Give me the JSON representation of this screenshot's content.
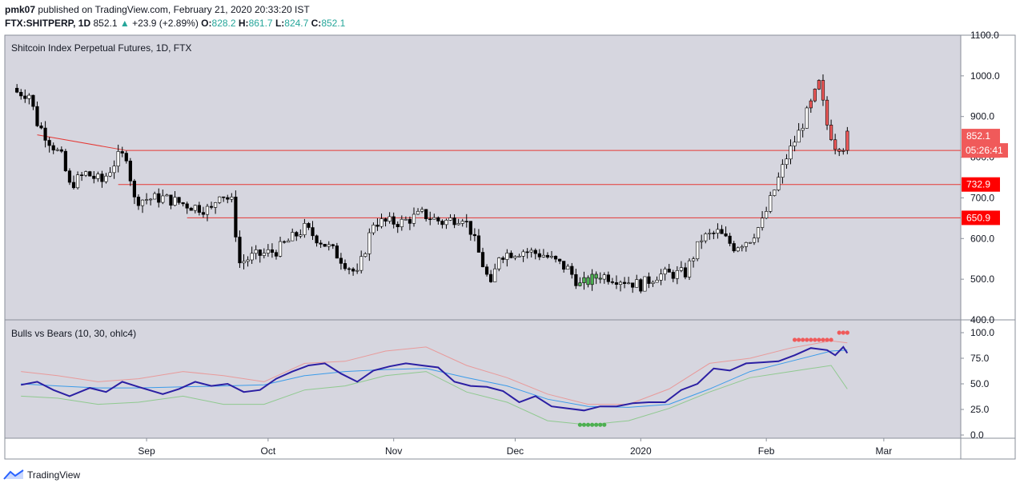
{
  "header": {
    "user": "pmk07",
    "published_text": "published on TradingView.com, February 21, 2020 20:33:20 IST",
    "symbol": "FTX:SHITPERP, 1D",
    "last": "852.1",
    "change_arrow": "▲",
    "change": "+23.9 (+2.89%)",
    "o_label": "O:",
    "o": "828.2",
    "h_label": "H:",
    "h": "861.7",
    "l_label": "L:",
    "l": "824.7",
    "c_label": "C:",
    "c": "852.1"
  },
  "footer": {
    "brand": "TradingView",
    "logo_icon": "tradingview-logo-icon"
  },
  "colors": {
    "pane_bg": "#d6d6df",
    "up": "#ffffff",
    "down": "#000000",
    "signal_up": "#4caf50",
    "signal_down": "#f05a5a",
    "hline": "#e53935",
    "bull": "#2b1fa3",
    "bear": "#3a9bea",
    "upper_band": "#e89a9a",
    "lower_band": "#8fc98f"
  },
  "chart_data": [
    {
      "type": "candlestick",
      "title": "Shitcoin Index Perpetual Futures, 1D, FTX",
      "ylim": [
        400,
        1100
      ],
      "y_ticks": [
        "400.0",
        "500.0",
        "600.0",
        "700.0",
        "800.0",
        "900.0",
        "1000.0",
        "1100.0"
      ],
      "x_ticks": [
        "Sep",
        "Oct",
        "Nov",
        "Dec",
        "2020",
        "Feb",
        "Mar"
      ],
      "horizontal_levels": [
        {
          "label": "816.5",
          "value": 816.5
        },
        {
          "label": "732.9",
          "value": 732.9
        },
        {
          "label": "650.9",
          "value": 650.9
        }
      ],
      "last_price_label": "852.1",
      "countdown_label": "05:26:41",
      "trendline": {
        "from": [
          "2019-08-05",
          855
        ],
        "to": [
          "2019-08-27",
          816.5
        ]
      },
      "closes": [
        {
          "date": "2019-07-31",
          "close": 960
        },
        {
          "date": "2019-08-03",
          "close": 955
        },
        {
          "date": "2019-08-05",
          "close": 885
        },
        {
          "date": "2019-08-08",
          "close": 840
        },
        {
          "date": "2019-08-11",
          "close": 800
        },
        {
          "date": "2019-08-13",
          "close": 730
        },
        {
          "date": "2019-08-17",
          "close": 760
        },
        {
          "date": "2019-08-21",
          "close": 740
        },
        {
          "date": "2019-08-25",
          "close": 800
        },
        {
          "date": "2019-08-27",
          "close": 805
        },
        {
          "date": "2019-08-29",
          "close": 695
        },
        {
          "date": "2019-09-05",
          "close": 700
        },
        {
          "date": "2019-09-12",
          "close": 680
        },
        {
          "date": "2019-09-17",
          "close": 670
        },
        {
          "date": "2019-09-19",
          "close": 715
        },
        {
          "date": "2019-09-22",
          "close": 690
        },
        {
          "date": "2019-09-24",
          "close": 540
        },
        {
          "date": "2019-09-27",
          "close": 555
        },
        {
          "date": "2019-10-03",
          "close": 570
        },
        {
          "date": "2019-10-10",
          "close": 625
        },
        {
          "date": "2019-10-17",
          "close": 570
        },
        {
          "date": "2019-10-23",
          "close": 510
        },
        {
          "date": "2019-10-27",
          "close": 640
        },
        {
          "date": "2019-11-03",
          "close": 640
        },
        {
          "date": "2019-11-08",
          "close": 660
        },
        {
          "date": "2019-11-13",
          "close": 640
        },
        {
          "date": "2019-11-18",
          "close": 655
        },
        {
          "date": "2019-11-20",
          "close": 620
        },
        {
          "date": "2019-11-25",
          "close": 480
        },
        {
          "date": "2019-11-27",
          "close": 560
        },
        {
          "date": "2019-12-03",
          "close": 570
        },
        {
          "date": "2019-12-08",
          "close": 560
        },
        {
          "date": "2019-12-14",
          "close": 525
        },
        {
          "date": "2019-12-17",
          "close": 485
        },
        {
          "date": "2019-12-22",
          "close": 510
        },
        {
          "date": "2019-12-27",
          "close": 500
        },
        {
          "date": "2020-01-01",
          "close": 485
        },
        {
          "date": "2020-01-05",
          "close": 510
        },
        {
          "date": "2020-01-12",
          "close": 515
        },
        {
          "date": "2020-01-16",
          "close": 600
        },
        {
          "date": "2020-01-20",
          "close": 615
        },
        {
          "date": "2020-01-24",
          "close": 580
        },
        {
          "date": "2020-01-28",
          "close": 600
        },
        {
          "date": "2020-01-31",
          "close": 640
        },
        {
          "date": "2020-02-03",
          "close": 720
        },
        {
          "date": "2020-02-06",
          "close": 800
        },
        {
          "date": "2020-02-09",
          "close": 860
        },
        {
          "date": "2020-02-12",
          "close": 930
        },
        {
          "date": "2020-02-14",
          "close": 980
        },
        {
          "date": "2020-02-16",
          "close": 880
        },
        {
          "date": "2020-02-18",
          "close": 830
        },
        {
          "date": "2020-02-20",
          "close": 828
        },
        {
          "date": "2020-02-21",
          "close": 852.1
        }
      ],
      "green_signal_window": [
        "2019-12-17",
        "2019-12-22"
      ],
      "red_signal_window": [
        "2020-02-12",
        "2020-02-21"
      ]
    },
    {
      "type": "line",
      "title": "Bulls vs Bears (10, 30, ohlc4)",
      "ylim": [
        0,
        100
      ],
      "y_ticks": [
        "0.0",
        "25.0",
        "50.0",
        "75.0",
        "100.0"
      ],
      "x_ticks": [
        "Sep",
        "Oct",
        "Nov",
        "Dec",
        "2020",
        "Feb",
        "Mar"
      ],
      "series": [
        {
          "key": "bull",
          "points": [
            [
              "2019-08-01",
              49
            ],
            [
              "2019-08-05",
              52
            ],
            [
              "2019-08-09",
              44
            ],
            [
              "2019-08-13",
              38
            ],
            [
              "2019-08-18",
              46
            ],
            [
              "2019-08-22",
              42
            ],
            [
              "2019-08-26",
              52
            ],
            [
              "2019-08-30",
              47
            ],
            [
              "2019-09-05",
              40
            ],
            [
              "2019-09-09",
              45
            ],
            [
              "2019-09-13",
              52
            ],
            [
              "2019-09-17",
              48
            ],
            [
              "2019-09-21",
              50
            ],
            [
              "2019-09-25",
              42
            ],
            [
              "2019-09-29",
              44
            ],
            [
              "2019-10-03",
              55
            ],
            [
              "2019-10-07",
              62
            ],
            [
              "2019-10-11",
              68
            ],
            [
              "2019-10-15",
              70
            ],
            [
              "2019-10-19",
              60
            ],
            [
              "2019-10-23",
              52
            ],
            [
              "2019-10-27",
              63
            ],
            [
              "2019-10-31",
              67
            ],
            [
              "2019-11-04",
              70
            ],
            [
              "2019-11-08",
              68
            ],
            [
              "2019-11-12",
              66
            ],
            [
              "2019-11-16",
              52
            ],
            [
              "2019-11-20",
              48
            ],
            [
              "2019-11-24",
              47
            ],
            [
              "2019-11-28",
              43
            ],
            [
              "2019-12-02",
              32
            ],
            [
              "2019-12-06",
              38
            ],
            [
              "2019-12-10",
              28
            ],
            [
              "2019-12-14",
              26
            ],
            [
              "2019-12-18",
              24
            ],
            [
              "2019-12-22",
              28
            ],
            [
              "2019-12-26",
              28
            ],
            [
              "2019-12-30",
              31
            ],
            [
              "2020-01-03",
              32
            ],
            [
              "2020-01-07",
              32
            ],
            [
              "2020-01-11",
              44
            ],
            [
              "2020-01-15",
              50
            ],
            [
              "2020-01-19",
              65
            ],
            [
              "2020-01-23",
              63
            ],
            [
              "2020-01-27",
              70
            ],
            [
              "2020-01-31",
              71
            ],
            [
              "2020-02-04",
              72
            ],
            [
              "2020-02-08",
              78
            ],
            [
              "2020-02-12",
              85
            ],
            [
              "2020-02-16",
              83
            ],
            [
              "2020-02-18",
              78
            ],
            [
              "2020-02-20",
              86
            ],
            [
              "2020-02-21",
              80
            ]
          ]
        },
        {
          "key": "bear",
          "points": [
            [
              "2019-08-01",
              50
            ],
            [
              "2019-08-10",
              48
            ],
            [
              "2019-08-20",
              46
            ],
            [
              "2019-08-30",
              46
            ],
            [
              "2019-09-10",
              47
            ],
            [
              "2019-09-20",
              48
            ],
            [
              "2019-09-30",
              49
            ],
            [
              "2019-10-10",
              58
            ],
            [
              "2019-10-20",
              62
            ],
            [
              "2019-10-30",
              64
            ],
            [
              "2019-11-09",
              65
            ],
            [
              "2019-11-19",
              56
            ],
            [
              "2019-11-29",
              48
            ],
            [
              "2019-12-09",
              35
            ],
            [
              "2019-12-19",
              28
            ],
            [
              "2019-12-29",
              27
            ],
            [
              "2020-01-08",
              30
            ],
            [
              "2020-01-18",
              45
            ],
            [
              "2020-01-28",
              62
            ],
            [
              "2020-02-07",
              72
            ],
            [
              "2020-02-17",
              82
            ],
            [
              "2020-02-21",
              83
            ]
          ]
        },
        {
          "key": "upper",
          "points": [
            [
              "2019-08-01",
              62
            ],
            [
              "2019-08-10",
              58
            ],
            [
              "2019-08-20",
              52
            ],
            [
              "2019-08-30",
              55
            ],
            [
              "2019-09-10",
              62
            ],
            [
              "2019-09-20",
              58
            ],
            [
              "2019-09-30",
              52
            ],
            [
              "2019-10-10",
              70
            ],
            [
              "2019-10-20",
              72
            ],
            [
              "2019-10-30",
              82
            ],
            [
              "2019-11-09",
              86
            ],
            [
              "2019-11-19",
              68
            ],
            [
              "2019-11-29",
              56
            ],
            [
              "2019-12-09",
              40
            ],
            [
              "2019-12-19",
              30
            ],
            [
              "2019-12-29",
              30
            ],
            [
              "2020-01-08",
              45
            ],
            [
              "2020-01-18",
              70
            ],
            [
              "2020-01-28",
              75
            ],
            [
              "2020-02-07",
              85
            ],
            [
              "2020-02-17",
              92
            ],
            [
              "2020-02-21",
              90
            ]
          ]
        },
        {
          "key": "lower",
          "points": [
            [
              "2019-08-01",
              38
            ],
            [
              "2019-08-10",
              36
            ],
            [
              "2019-08-20",
              30
            ],
            [
              "2019-08-30",
              32
            ],
            [
              "2019-09-10",
              38
            ],
            [
              "2019-09-20",
              30
            ],
            [
              "2019-09-30",
              30
            ],
            [
              "2019-10-10",
              44
            ],
            [
              "2019-10-20",
              48
            ],
            [
              "2019-10-30",
              58
            ],
            [
              "2019-11-09",
              62
            ],
            [
              "2019-11-19",
              42
            ],
            [
              "2019-11-29",
              32
            ],
            [
              "2019-12-09",
              14
            ],
            [
              "2019-12-19",
              10
            ],
            [
              "2019-12-29",
              14
            ],
            [
              "2020-01-08",
              26
            ],
            [
              "2020-01-18",
              42
            ],
            [
              "2020-01-28",
              56
            ],
            [
              "2020-02-07",
              62
            ],
            [
              "2020-02-17",
              68
            ],
            [
              "2020-02-21",
              45
            ]
          ]
        }
      ],
      "bull_markers": {
        "value": 10,
        "dates": [
          "2019-12-17",
          "2019-12-18",
          "2019-12-19",
          "2019-12-20",
          "2019-12-21",
          "2019-12-22",
          "2019-12-23"
        ]
      },
      "bear_markers": {
        "value": 93,
        "dates": [
          "2020-02-08",
          "2020-02-09",
          "2020-02-10",
          "2020-02-11",
          "2020-02-12",
          "2020-02-13",
          "2020-02-14",
          "2020-02-15",
          "2020-02-16",
          "2020-02-17"
        ]
      },
      "bear_markers_top": {
        "value": 100,
        "dates": [
          "2020-02-19",
          "2020-02-20",
          "2020-02-21"
        ]
      }
    }
  ]
}
